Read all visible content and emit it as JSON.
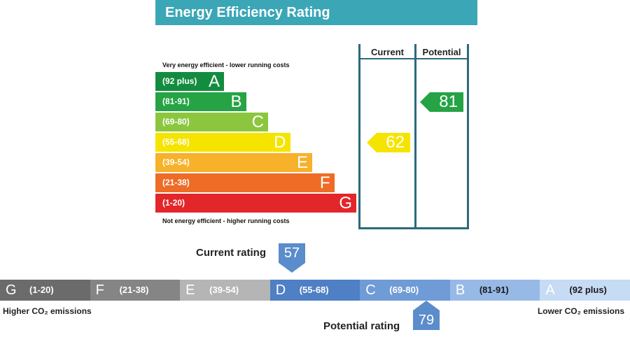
{
  "chart_data": [
    {
      "type": "bar",
      "title": "Energy Efficiency Rating",
      "top_note": "Very energy efficient - lower running costs",
      "bottom_note": "Not energy efficient - higher running costs",
      "bands": [
        {
          "letter": "A",
          "range": "(92 plus)",
          "color": "#138c3f",
          "min": 92,
          "max": 100
        },
        {
          "letter": "B",
          "range": "(81-91)",
          "color": "#25a345",
          "min": 81,
          "max": 91
        },
        {
          "letter": "C",
          "range": "(69-80)",
          "color": "#8cc63f",
          "min": 69,
          "max": 80
        },
        {
          "letter": "D",
          "range": "(55-68)",
          "color": "#f5e400",
          "min": 55,
          "max": 68
        },
        {
          "letter": "E",
          "range": "(39-54)",
          "color": "#f7b12a",
          "min": 39,
          "max": 54
        },
        {
          "letter": "F",
          "range": "(21-38)",
          "color": "#ee6c26",
          "min": 21,
          "max": 38
        },
        {
          "letter": "G",
          "range": "(1-20)",
          "color": "#e2262a",
          "min": 1,
          "max": 20
        }
      ],
      "columns": {
        "current_label": "Current",
        "potential_label": "Potential"
      },
      "current": {
        "value": "62",
        "band": "D",
        "color": "#f5e400"
      },
      "potential": {
        "value": "81",
        "band": "B",
        "color": "#25a345"
      }
    },
    {
      "type": "bar",
      "title": "",
      "segments": [
        {
          "letter": "G",
          "range": "(1-20)",
          "color": "#6b6b6b"
        },
        {
          "letter": "F",
          "range": "(21-38)",
          "color": "#858585"
        },
        {
          "letter": "E",
          "range": "(39-54)",
          "color": "#b5b5b5"
        },
        {
          "letter": "D",
          "range": "(55-68)",
          "color": "#4f7fc4"
        },
        {
          "letter": "C",
          "range": "(69-80)",
          "color": "#6f9bd6"
        },
        {
          "letter": "B",
          "range": "(81-91)",
          "color": "#97b9e6"
        },
        {
          "letter": "A",
          "range": "(92 plus)",
          "color": "#c6dbf4"
        }
      ],
      "left_end": "Higher CO₂ emissions",
      "right_end": "Lower CO₂ emissions",
      "current_marker": {
        "label": "Current rating",
        "value": "57"
      },
      "potential_marker": {
        "label": "Potential rating",
        "value": "79"
      }
    }
  ]
}
